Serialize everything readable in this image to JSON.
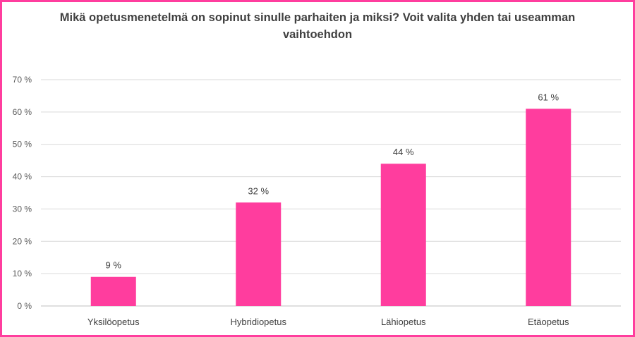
{
  "chart_data": {
    "type": "bar",
    "title": "Mikä opetusmenetelmä on sopinut sinulle parhaiten ja miksi? Voit valita yhden tai useamman vaihtoehdon",
    "categories": [
      "Yksilöopetus",
      "Hybridiopetus",
      "Lähiopetus",
      "Etäopetus"
    ],
    "values": [
      9,
      32,
      44,
      61
    ],
    "data_labels": [
      "9 %",
      "32 %",
      "44 %",
      "61 %"
    ],
    "yticks": [
      "0 %",
      "10 %",
      "20 %",
      "30 %",
      "40 %",
      "50 %",
      "60 %",
      "70 %"
    ],
    "ylim": [
      0,
      70
    ],
    "grid": true,
    "bar_color": "#ff3d9e",
    "border_color": "#ff3d9e"
  }
}
